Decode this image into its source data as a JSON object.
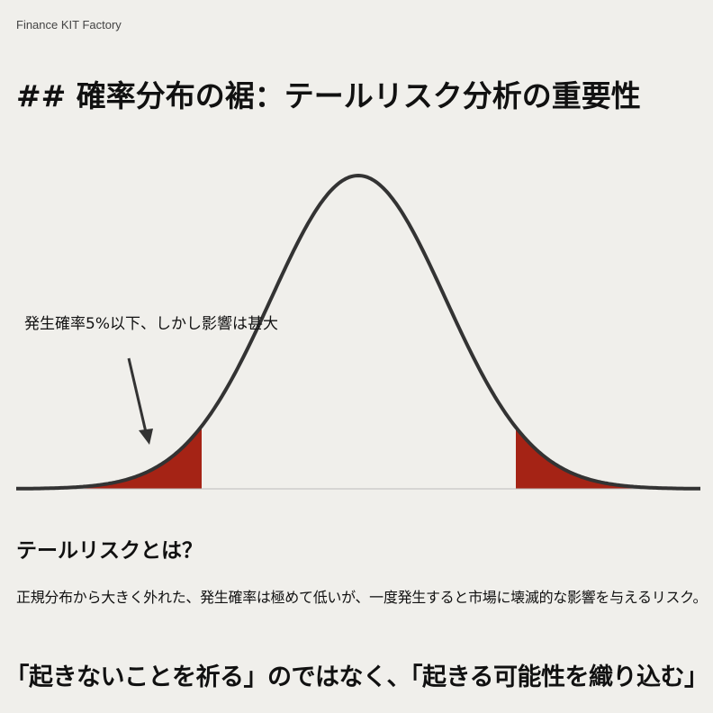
{
  "brand": "Finance KIT Factory",
  "title": "## 確率分布の裾：テールリスク分析の重要性",
  "diagram": {
    "curve": "normal-distribution",
    "shaded_tails": "both",
    "tail_color": "#a52315",
    "curve_color": "#333333",
    "annotation": "発生確率5%以下、しかし影響は甚大"
  },
  "section": {
    "heading": "テールリスクとは？",
    "description": "正規分布から大きく外れた、発生確率は極めて低いが、一度発生すると市場に壊滅的な影響を与えるリスク。"
  },
  "quote": "「起きないことを祈る」のではなく、「起きる可能性を織り込む」"
}
